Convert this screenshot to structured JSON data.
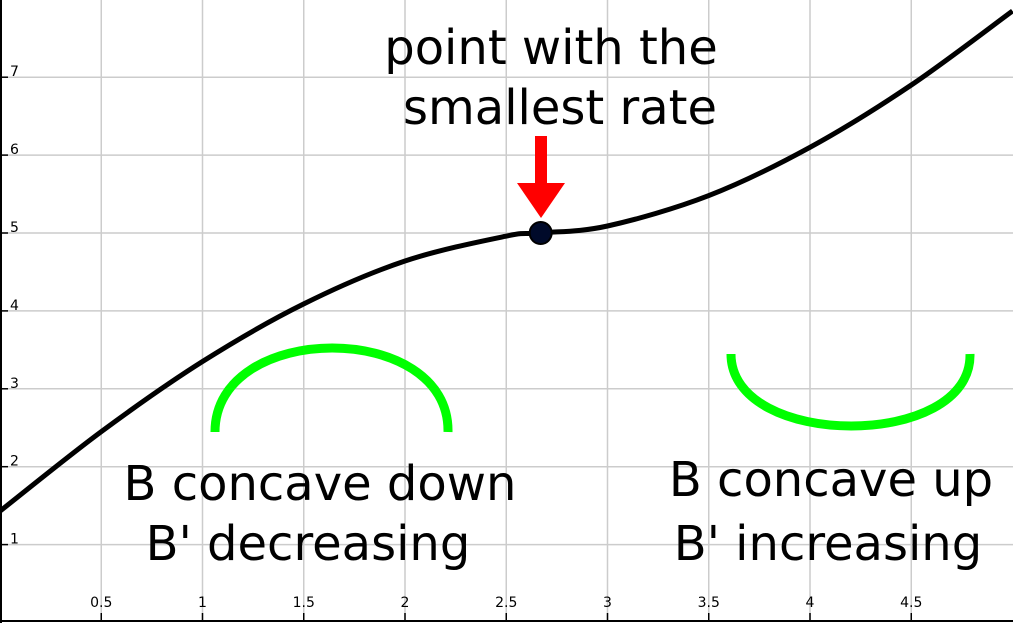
{
  "chart_data": {
    "type": "line",
    "title": "",
    "xlabel": "",
    "ylabel": "",
    "xlim": [
      0,
      5.0
    ],
    "ylim": [
      0,
      7.8
    ],
    "grid": true,
    "x_ticks": [
      "0.5",
      "1",
      "1.5",
      "2",
      "2.5",
      "3",
      "3.5",
      "4",
      "4.5"
    ],
    "y_ticks": [
      "1",
      "2",
      "3",
      "4",
      "5",
      "6",
      "7"
    ],
    "series": [
      {
        "x": [
          0,
          0.5,
          1.0,
          1.5,
          2.0,
          2.5,
          2.67,
          3.0,
          3.5,
          4.0,
          4.5,
          5.0
        ],
        "y": [
          1.43,
          2.45,
          3.35,
          4.09,
          4.64,
          4.96,
          5.0,
          5.09,
          5.48,
          6.1,
          6.9,
          7.85
        ],
        "color": "#000000"
      }
    ],
    "marked_point": {
      "x": 2.67,
      "y": 5.0,
      "color": "#000000"
    },
    "annotations": {
      "point_label": [
        "point with the",
        "smallest rate"
      ],
      "left_label": [
        "B concave down",
        "B' decreasing"
      ],
      "right_label": [
        "B concave up",
        "B' increasing"
      ]
    },
    "colors": {
      "arrow": "#ff0000",
      "concavity_arcs": "#00ff00",
      "grid": "#cccccc"
    }
  }
}
